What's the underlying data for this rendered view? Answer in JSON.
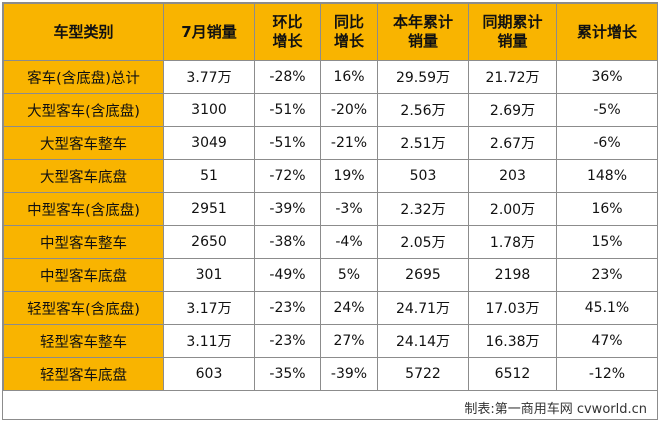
{
  "headers": [
    [
      "车型类别"
    ],
    [
      "7月销量"
    ],
    [
      "环比",
      "增长"
    ],
    [
      "同比",
      "增长"
    ],
    [
      "本年累计",
      "销量"
    ],
    [
      "同期累计",
      "销量"
    ],
    [
      "累计增长"
    ]
  ],
  "rows": [
    [
      "客车(含底盘)总计",
      "3.77万",
      "-28%",
      "16%",
      "29.59万",
      "21.72万",
      "36%"
    ],
    [
      "大型客车(含底盘)",
      "3100",
      "-51%",
      "-20%",
      "2.56万",
      "2.69万",
      "-5%"
    ],
    [
      "大型客车整车",
      "3049",
      "-51%",
      "-21%",
      "2.51万",
      "2.67万",
      "-6%"
    ],
    [
      "大型客车底盘",
      "51",
      "-72%",
      "19%",
      "503",
      "203",
      "148%"
    ],
    [
      "中型客车(含底盘)",
      "2951",
      "-39%",
      "-3%",
      "2.32万",
      "2.00万",
      "16%"
    ],
    [
      "中型客车整车",
      "2650",
      "-38%",
      "-4%",
      "2.05万",
      "1.78万",
      "15%"
    ],
    [
      "中型客车底盘",
      "301",
      "-49%",
      "5%",
      "2695",
      "2198",
      "23%"
    ],
    [
      "轻型客车(含底盘)",
      "3.17万",
      "-23%",
      "24%",
      "24.71万",
      "17.03万",
      "45.1%"
    ],
    [
      "轻型客车整车",
      "3.11万",
      "-23%",
      "27%",
      "24.14万",
      "16.38万",
      "47%"
    ],
    [
      "轻型客车底盘",
      "603",
      "-35%",
      "-39%",
      "5722",
      "6512",
      "-12%"
    ]
  ],
  "footer": "制表:第一商用车网 cvworld.cn",
  "colors": {
    "header_fill": "#f9b400",
    "category_fill": "#f9b400",
    "border": "#8c8c8c"
  }
}
